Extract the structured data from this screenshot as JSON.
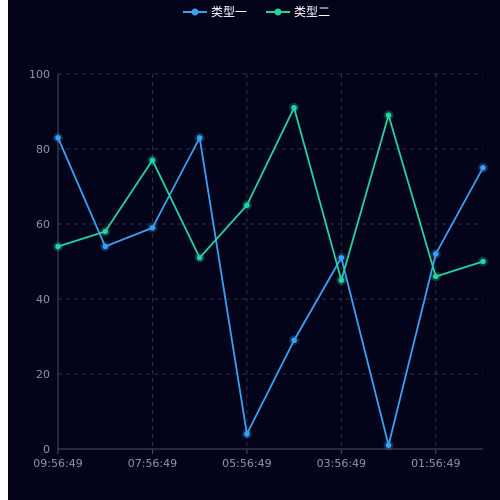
{
  "colors": {
    "background": "#03041a",
    "grid": "#2d3141",
    "axis": "#4a4e60",
    "tick_text": "#8f93a6",
    "legend_text": "#ffffff"
  },
  "legend": {
    "placement": "top-center",
    "items": [
      {
        "label": "类型一",
        "color": "#3aa0f5",
        "icon": "line-with-circle-icon"
      },
      {
        "label": "类型二",
        "color": "#23d3a0",
        "icon": "line-with-circle-icon"
      }
    ]
  },
  "chart_data": {
    "type": "line",
    "title": "",
    "xlabel": "",
    "ylabel": "",
    "x": [
      "09:56:49",
      "",
      "07:56:49",
      "",
      "05:56:49",
      "",
      "03:56:49",
      "",
      "01:56:49",
      ""
    ],
    "x_tick_labels": [
      "09:56:49",
      "07:56:49",
      "05:56:49",
      "03:56:49",
      "01:56:49"
    ],
    "y_tick_labels": [
      "0",
      "20",
      "40",
      "60",
      "80",
      "100"
    ],
    "ylim": [
      0,
      100
    ],
    "grid": true,
    "series": [
      {
        "name": "类型一",
        "color": "#3aa0f5",
        "values": [
          83,
          54,
          59,
          83,
          4,
          29,
          51,
          1,
          52,
          75
        ]
      },
      {
        "name": "类型二",
        "color": "#23d3a0",
        "values": [
          54,
          58,
          77,
          51,
          65,
          91,
          45,
          89,
          46,
          50
        ]
      }
    ]
  }
}
